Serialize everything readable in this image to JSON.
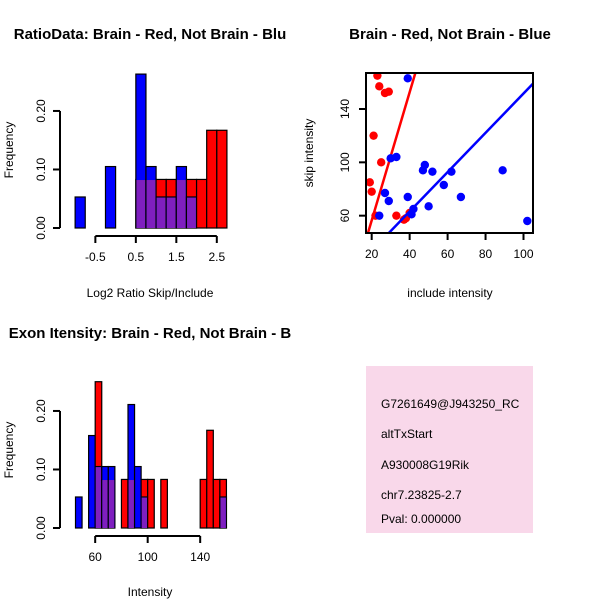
{
  "colors": {
    "red": "#ff0000",
    "blue": "#0000ff",
    "purple": "#7f1fbf",
    "info_bg": "#f9d8ea",
    "pval": "#b00000"
  },
  "chart_data": [
    {
      "type": "bar",
      "title": "RatioData: Brain - Red, Not Brain - Blu",
      "xlabel": "Log2 Ratio Skip/Include",
      "ylabel": "Frequency",
      "xlim": [
        -1.25,
        2.9
      ],
      "ylim": [
        0,
        0.27
      ],
      "xticks": [
        -0.5,
        0.5,
        1.5,
        2.5
      ],
      "xtick_labels": [
        "-0.5",
        "0.5",
        "1.5",
        "2.5"
      ],
      "yticks": [
        0,
        0.1,
        0.2
      ],
      "ytick_labels": [
        "0.00",
        "0.10",
        "0.20"
      ],
      "bin_width": 0.25,
      "bin_starts": [
        -1.0,
        -0.75,
        -0.5,
        -0.25,
        0.0,
        0.25,
        0.5,
        0.75,
        1.0,
        1.25,
        1.5,
        1.75,
        2.0,
        2.25,
        2.5
      ],
      "series": [
        {
          "name": "Brain",
          "color": "red",
          "values": [
            0,
            0,
            0,
            0,
            0,
            0,
            0.083,
            0.083,
            0.083,
            0.083,
            0.083,
            0.083,
            0.083,
            0.167,
            0.167
          ]
        },
        {
          "name": "Not Brain",
          "color": "blue",
          "values": [
            0.053,
            0,
            0,
            0.105,
            0,
            0,
            0.263,
            0.105,
            0.053,
            0.053,
            0.105,
            0.053,
            0,
            0,
            0
          ]
        }
      ]
    },
    {
      "type": "scatter",
      "title": "Brain - Red, Not Brain - Blue",
      "xlabel": "include intensity",
      "ylabel": "skip intensity",
      "xlim": [
        17,
        105
      ],
      "ylim": [
        47,
        167
      ],
      "xticks": [
        20,
        40,
        60,
        80,
        100
      ],
      "xtick_labels": [
        "20",
        "40",
        "60",
        "80",
        "100"
      ],
      "yticks": [
        60,
        100,
        140
      ],
      "ytick_labels": [
        "60",
        "100",
        "140"
      ],
      "series": [
        {
          "name": "Brain",
          "color": "red",
          "x": [
            23,
            24,
            27,
            29,
            21,
            25,
            19,
            20,
            22,
            33,
            37,
            38,
            40
          ],
          "y": [
            165,
            157,
            152,
            153,
            120,
            100,
            85,
            78,
            60,
            60,
            57,
            58,
            62
          ],
          "fit": [
            [
              17,
              42
            ],
            [
              43,
              167
            ]
          ]
        },
        {
          "name": "Not Brain",
          "color": "blue",
          "x": [
            27,
            29,
            30,
            33,
            39,
            41,
            42,
            47,
            48,
            50,
            52,
            58,
            62,
            67,
            89,
            102,
            24,
            28,
            39
          ],
          "y": [
            77,
            71,
            103,
            104,
            74,
            61,
            65,
            94,
            98,
            67,
            93,
            83,
            93,
            74,
            94,
            56,
            60,
            44,
            163
          ],
          "fit": [
            [
              27,
              44
            ],
            [
              105,
              159
            ]
          ]
        }
      ]
    },
    {
      "type": "bar",
      "title": "Exon Itensity: Brain - Red, Not Brain - B",
      "xlabel": "Intensity",
      "ylabel": "Frequency",
      "xlim": [
        37,
        165
      ],
      "ylim": [
        0,
        0.27
      ],
      "xticks": [
        60,
        100,
        140
      ],
      "xtick_labels": [
        "60",
        "100",
        "140"
      ],
      "yticks": [
        0,
        0.1,
        0.2
      ],
      "ytick_labels": [
        "0.00",
        "0.10",
        "0.20"
      ],
      "bin_width": 5,
      "bin_starts": [
        45,
        50,
        55,
        60,
        65,
        70,
        75,
        80,
        85,
        90,
        95,
        100,
        105,
        110,
        115,
        120,
        125,
        130,
        135,
        140,
        145,
        150,
        155
      ],
      "series": [
        {
          "name": "Brain",
          "color": "red",
          "values": [
            0,
            0,
            0,
            0.25,
            0.083,
            0.083,
            0,
            0.083,
            0.083,
            0,
            0.083,
            0.083,
            0,
            0.083,
            0,
            0,
            0,
            0,
            0,
            0.083,
            0.167,
            0.083,
            0.083
          ]
        },
        {
          "name": "Not Brain",
          "color": "blue",
          "values": [
            0.053,
            0,
            0.158,
            0.105,
            0.105,
            0.105,
            0,
            0,
            0.211,
            0.105,
            0.053,
            0,
            0,
            0,
            0,
            0,
            0,
            0,
            0,
            0,
            0,
            0,
            0.053
          ]
        }
      ]
    }
  ],
  "info_panel": {
    "probe_id": "G7261649@J943250_RC",
    "event_type": "altTxStart",
    "gene": "A930008G19Rik",
    "location": "chr7.23825-2.7",
    "pval": "Pval: 0.000000"
  }
}
